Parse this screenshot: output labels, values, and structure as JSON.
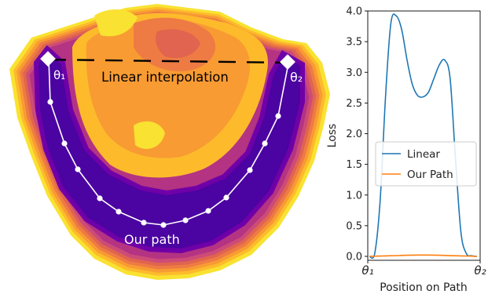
{
  "landscape": {
    "linear_label": "Linear interpolation",
    "path_label": "Our path",
    "theta1_label": "θ₁",
    "theta2_label": "θ₂",
    "palette": [
      "#f9e231",
      "#fdbb2c",
      "#f89b33",
      "#ee7b43",
      "#e0644f",
      "#cc4b78",
      "#b43382",
      "#95158f",
      "#6f00a8",
      "#4b03a1"
    ]
  },
  "chart_data": {
    "type": "line",
    "xlabel": "Position on Path",
    "ylabel": "Loss",
    "xtick_labels": [
      "θ₁",
      "θ₂"
    ],
    "ylim": [
      0,
      4.0
    ],
    "yticks": [
      "0.0",
      "0.5",
      "1.0",
      "1.5",
      "2.0",
      "2.5",
      "3.0",
      "3.5",
      "4.0"
    ],
    "legend_position": "center",
    "series": [
      {
        "name": "Linear",
        "color": "#1f77b4",
        "x": [
          0.0,
          0.05,
          0.1,
          0.15,
          0.2,
          0.25,
          0.3,
          0.35,
          0.4,
          0.45,
          0.5,
          0.55,
          0.6,
          0.65,
          0.7,
          0.75,
          0.8,
          0.85,
          0.9,
          0.95,
          1.0
        ],
        "y": [
          0.0,
          0.05,
          0.9,
          2.6,
          3.8,
          3.92,
          3.7,
          3.2,
          2.8,
          2.62,
          2.6,
          2.68,
          2.9,
          3.12,
          3.2,
          2.9,
          1.6,
          0.4,
          0.05,
          0.01,
          0.0
        ]
      },
      {
        "name": "Our Path",
        "color": "#ff7f0e",
        "x": [
          0.0,
          0.1,
          0.2,
          0.3,
          0.4,
          0.5,
          0.6,
          0.7,
          0.8,
          0.9,
          1.0
        ],
        "y": [
          0.0,
          0.005,
          0.01,
          0.015,
          0.02,
          0.022,
          0.02,
          0.015,
          0.01,
          0.005,
          0.0
        ]
      }
    ]
  }
}
